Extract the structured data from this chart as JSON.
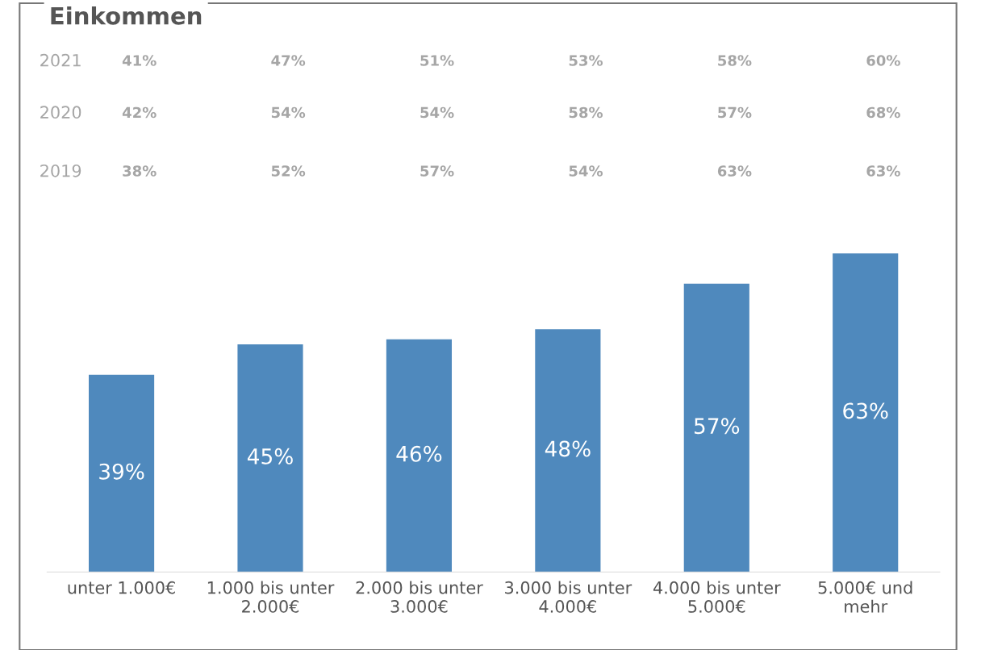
{
  "chart_data": {
    "type": "bar",
    "title": "Einkommen",
    "categories": [
      "unter 1.000€",
      "1.000 bis unter\n2.000€",
      "2.000 bis unter\n3.000€",
      "3.000 bis unter\n4.000€",
      "4.000 bis unter\n5.000€",
      "5.000€ und\nmehr"
    ],
    "values": [
      39,
      45,
      46,
      48,
      57,
      63
    ],
    "value_labels": [
      "39%",
      "45%",
      "46%",
      "48%",
      "57%",
      "63%"
    ],
    "color": "#4f89bd",
    "grid": false,
    "annotations": [
      "2021",
      "41%",
      "47%",
      "51%",
      "53%",
      "58%",
      "60%",
      "2020",
      "42%",
      "54%",
      "54%",
      "58%",
      "57%",
      "68%",
      "2019",
      "38%",
      "52%",
      "57%",
      "54%",
      "63%",
      "63%"
    ]
  }
}
